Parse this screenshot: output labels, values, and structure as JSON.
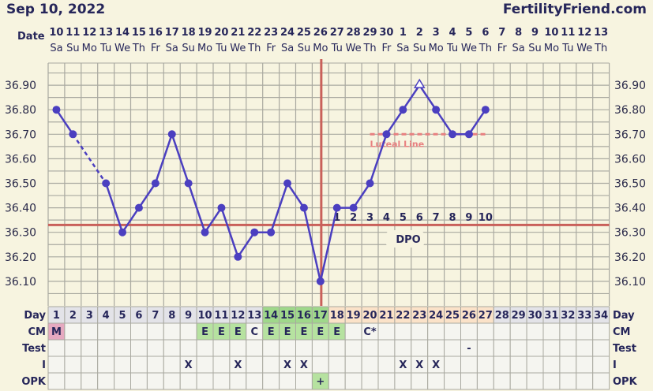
{
  "header": {
    "title": "Sep 10, 2022",
    "site": "FertilityFriend.com",
    "date_label": "Date"
  },
  "dates": [
    "10",
    "11",
    "12",
    "13",
    "14",
    "15",
    "16",
    "17",
    "18",
    "19",
    "20",
    "21",
    "22",
    "23",
    "24",
    "25",
    "26",
    "27",
    "28",
    "29",
    "30",
    "1",
    "2",
    "3",
    "4",
    "5",
    "6",
    "7",
    "8",
    "9",
    "10",
    "11",
    "12",
    "13"
  ],
  "weekdays": [
    "Sa",
    "Su",
    "Mo",
    "Tu",
    "We",
    "Th",
    "Fr",
    "Sa",
    "Su",
    "Mo",
    "Tu",
    "We",
    "Th",
    "Fr",
    "Sa",
    "Su",
    "Mo",
    "Tu",
    "We",
    "Th",
    "Fr",
    "Sa",
    "Su",
    "Mo",
    "Tu",
    "We",
    "Th",
    "Fr",
    "Sa",
    "Su",
    "Mo",
    "Tu",
    "We",
    "Th"
  ],
  "chart_data": {
    "type": "line",
    "ylim": [
      36.0,
      37.0
    ],
    "y_ticks": [
      "36.10",
      "36.20",
      "36.30",
      "36.40",
      "36.50",
      "36.60",
      "36.70",
      "36.80",
      "36.90"
    ],
    "days": [
      1,
      2,
      3,
      4,
      5,
      6,
      7,
      8,
      9,
      10,
      11,
      12,
      13,
      14,
      15,
      16,
      17,
      18,
      19,
      20,
      21,
      22,
      23,
      24,
      25,
      26,
      27
    ],
    "temps": [
      36.8,
      36.7,
      null,
      36.5,
      36.3,
      36.4,
      36.5,
      36.7,
      36.5,
      36.3,
      36.4,
      36.2,
      36.3,
      36.3,
      36.5,
      36.4,
      36.1,
      36.4,
      36.4,
      36.5,
      36.7,
      36.8,
      36.9,
      36.8,
      36.7,
      36.7,
      36.8
    ],
    "open_marker_days": [
      23
    ],
    "coverline": 36.33,
    "ovulation_day": 17,
    "luteal_line": {
      "label": "Luteal Line",
      "value": 36.7,
      "from_day": 20,
      "to_day": 27
    },
    "dpo_label": "DPO",
    "dpo_numbers": [
      "1",
      "2",
      "3",
      "4",
      "5",
      "6",
      "7",
      "8",
      "9",
      "10"
    ],
    "grid": true,
    "colors": {
      "line": "#4b3fc0",
      "coverline": "#c9605a",
      "luteal": "#e88080",
      "grid": "#a9a9a0"
    }
  },
  "table": {
    "row_labels": [
      "Day",
      "CM",
      "Test",
      "I",
      "OPK"
    ],
    "days": [
      "1",
      "2",
      "3",
      "4",
      "5",
      "6",
      "7",
      "8",
      "9",
      "10",
      "11",
      "12",
      "13",
      "14",
      "15",
      "16",
      "17",
      "18",
      "19",
      "20",
      "21",
      "22",
      "23",
      "24",
      "25",
      "26",
      "27",
      "28",
      "29",
      "30",
      "31",
      "32",
      "33",
      "34"
    ],
    "cm": {
      "1": "M",
      "10": "E",
      "11": "E",
      "12": "E",
      "13": "C",
      "14": "E",
      "15": "E",
      "16": "E",
      "17": "E",
      "18": "E",
      "20": "C*"
    },
    "test": {
      "26": "-"
    },
    "intercourse": {
      "9": "X",
      "12": "X",
      "15": "X",
      "16": "X",
      "22": "X",
      "23": "X",
      "24": "X"
    },
    "opk": {
      "17": "+"
    },
    "colors": {
      "menses": "#e6a9c0",
      "fertile_cm": "#b6e2a0",
      "fertile_window": "#9fd88a",
      "luteal": "#fbe2c8",
      "day_default": "#e3e3e8",
      "cell": "#f5f5f0"
    }
  }
}
